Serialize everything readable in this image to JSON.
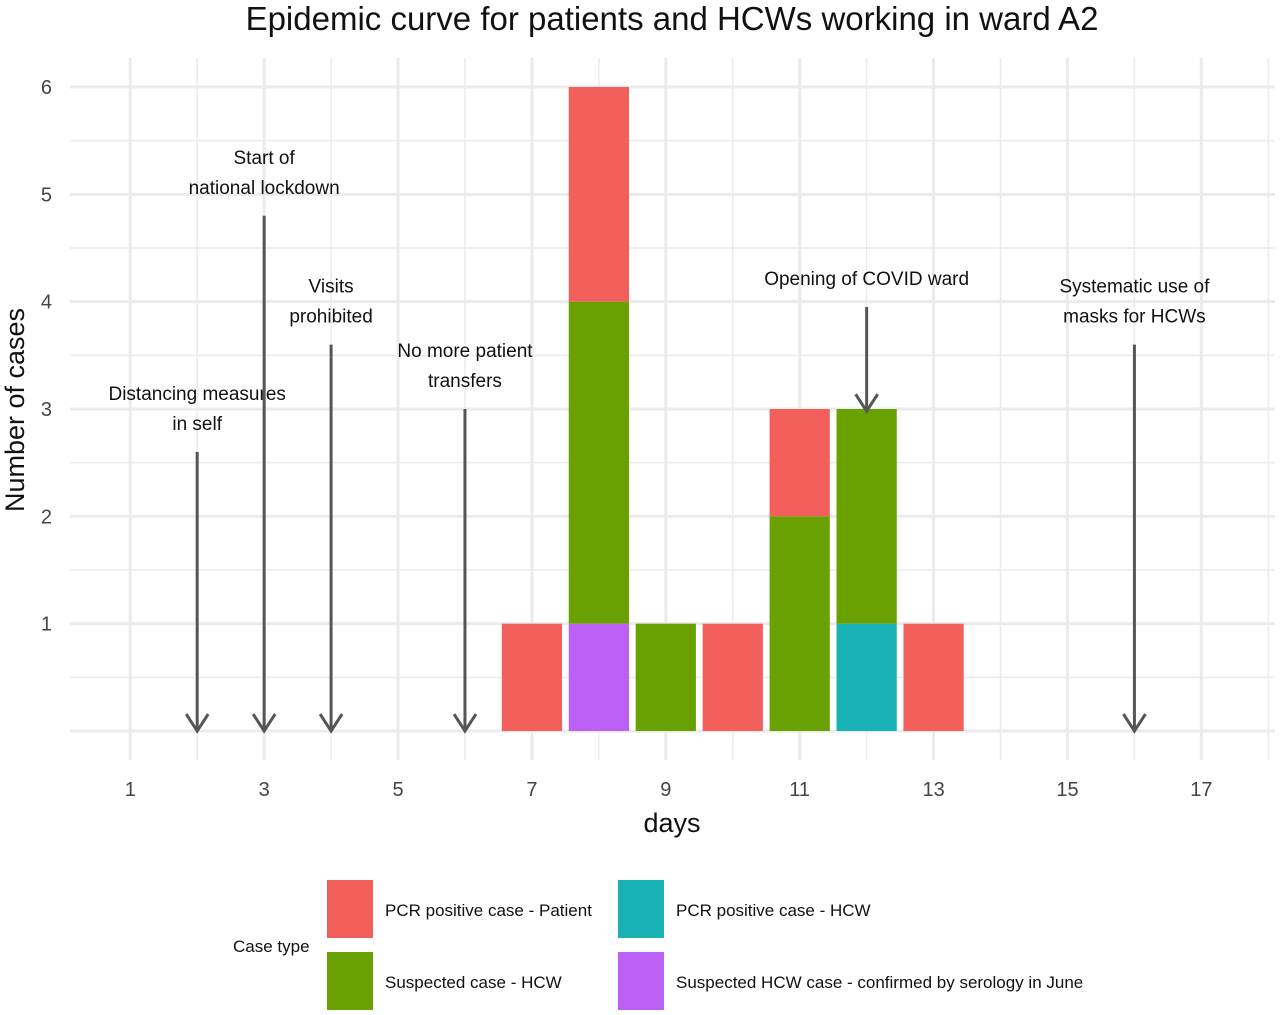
{
  "chart_data": {
    "type": "bar",
    "stacked": true,
    "title": "Epidemic curve for patients and HCWs working in ward A2",
    "xlabel": "days",
    "ylabel": "Number of cases",
    "xlim": [
      0.1,
      18.1
    ],
    "ylim": [
      -0.27,
      6.27
    ],
    "x_ticks": [
      1,
      3,
      5,
      7,
      9,
      11,
      13,
      15,
      17
    ],
    "y_ticks": [
      1,
      2,
      3,
      4,
      5,
      6
    ],
    "grid": true,
    "categories": [
      7,
      8,
      9,
      10,
      11,
      12,
      13
    ],
    "series": [
      {
        "name": "PCR positive case - HCW",
        "color": "#19b3b6",
        "values": [
          0,
          0,
          0,
          0,
          0,
          1,
          0
        ]
      },
      {
        "name": "Suspected HCW case - confirmed by serology in June",
        "color": "#bc5ff5",
        "values": [
          0,
          1,
          0,
          0,
          0,
          0,
          0
        ]
      },
      {
        "name": "Suspected case - HCW",
        "color": "#6aa102",
        "values": [
          0,
          3,
          1,
          0,
          2,
          2,
          0
        ]
      },
      {
        "name": "PCR positive case - Patient",
        "color": "#f35f5b",
        "values": [
          1,
          2,
          0,
          1,
          1,
          0,
          1
        ]
      }
    ],
    "annotations": [
      {
        "lines": [
          "Distancing measures",
          "in self"
        ],
        "x": 2,
        "y_top": 2.6
      },
      {
        "lines": [
          "Start of",
          "national lockdown"
        ],
        "x": 3,
        "y_top": 4.8
      },
      {
        "lines": [
          "Visits",
          "prohibited"
        ],
        "x": 4,
        "y_top": 3.6
      },
      {
        "lines": [
          "No more patient",
          "transfers"
        ],
        "x": 6,
        "y_top": 3.0
      },
      {
        "lines": [
          "Opening of COVID ward"
        ],
        "x": 12,
        "y_top": 3.95,
        "y_tip": 2.98
      },
      {
        "lines": [
          "Systematic use of",
          "masks for HCWs"
        ],
        "x": 16,
        "y_top": 3.6
      }
    ],
    "legend": {
      "title": "Case type",
      "position": "bottom",
      "entries": [
        {
          "label": "PCR positive case - Patient",
          "color": "#f35f5b"
        },
        {
          "label": "Suspected case - HCW",
          "color": "#6aa102"
        },
        {
          "label": "PCR positive case - HCW",
          "color": "#19b3b6"
        },
        {
          "label": "Suspected HCW case - confirmed by serology in June",
          "color": "#bc5ff5"
        }
      ]
    }
  }
}
